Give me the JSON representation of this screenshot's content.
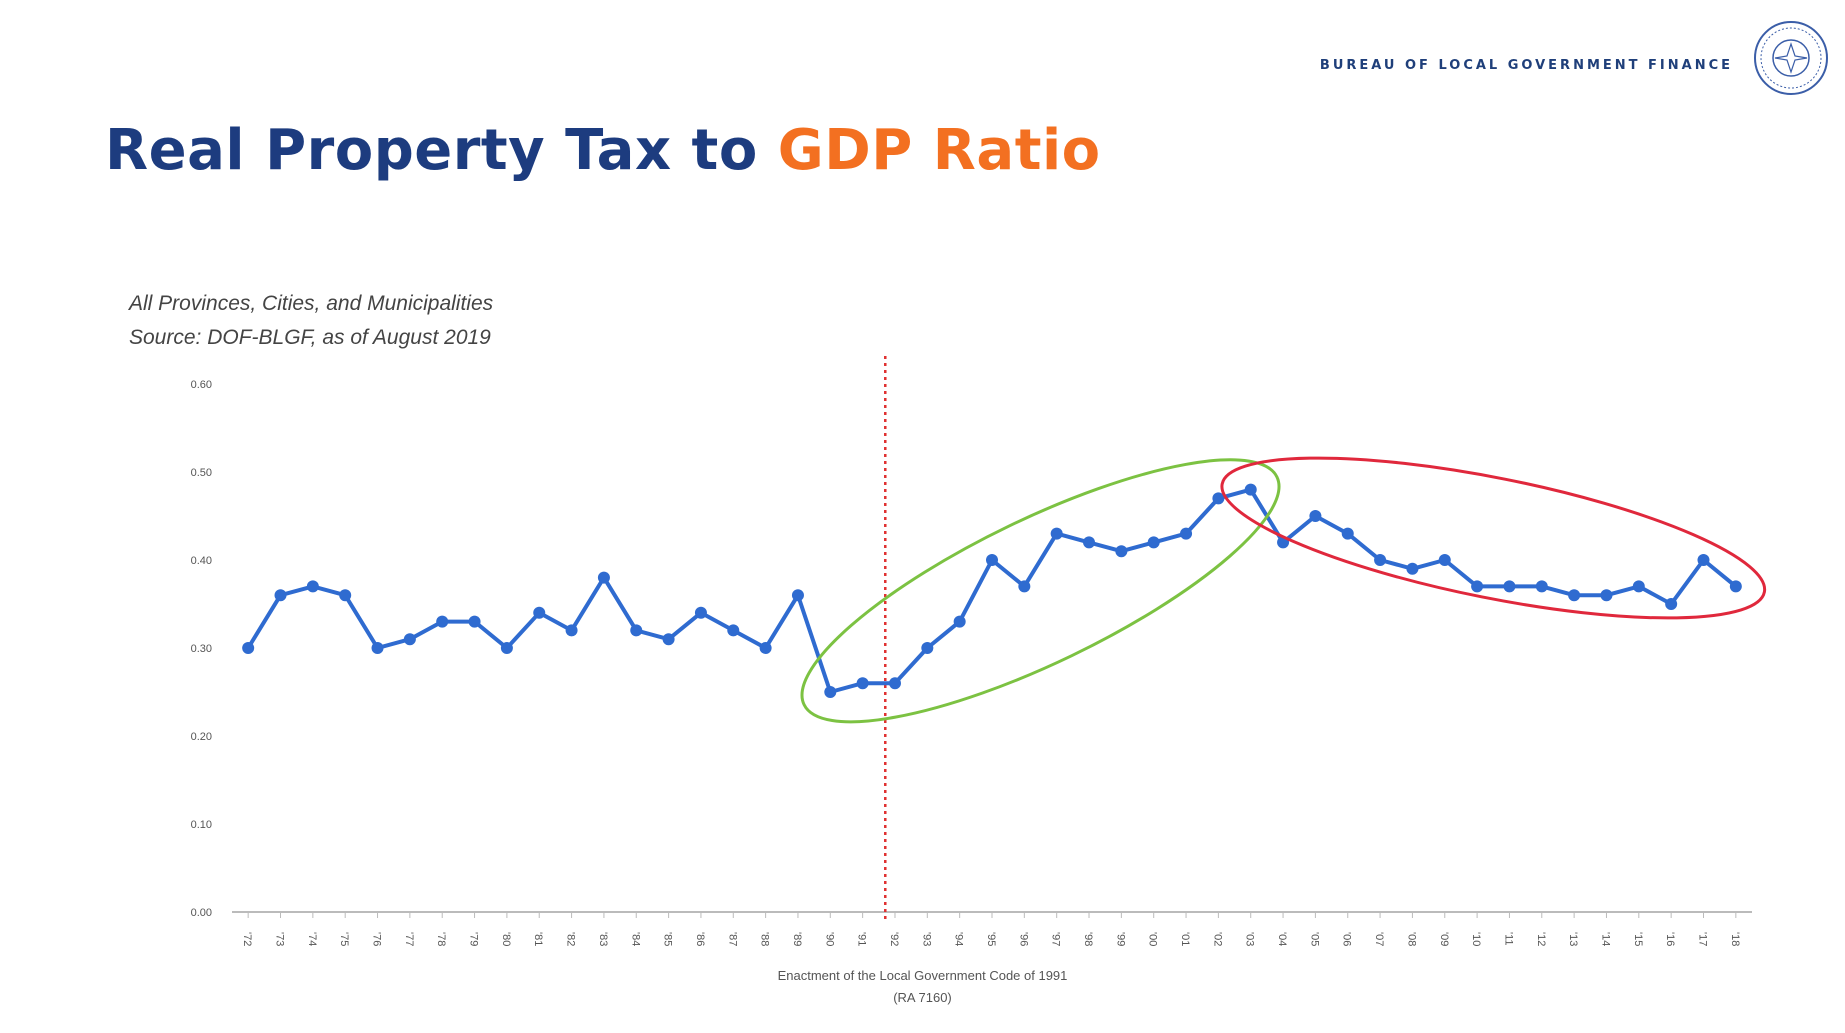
{
  "header": {
    "org_name": "Bureau of Local Government Finance",
    "title_part1": "Real Property Tax to ",
    "title_part2": "GDP Ratio",
    "title_color": "#1d3c7f",
    "accent_color": "#f37021"
  },
  "notes": {
    "line1": "All Provinces, Cities, and Municipalities",
    "line2": "Source: DOF-BLGF, as of August 2019"
  },
  "chart_data": {
    "type": "line",
    "x": [
      "'72",
      "'73",
      "'74",
      "'75",
      "'76",
      "'77",
      "'78",
      "'79",
      "'80",
      "'81",
      "'82",
      "'83",
      "'84",
      "'85",
      "'86",
      "'87",
      "'88",
      "'89",
      "'90",
      "'91",
      "'92",
      "'93",
      "'94",
      "'95",
      "'96",
      "'97",
      "'98",
      "'99",
      "'00",
      "'01",
      "'02",
      "'03",
      "'04",
      "'05",
      "'06",
      "'07",
      "'08",
      "'09",
      "'10",
      "'11",
      "'12",
      "'13",
      "'14",
      "'15",
      "'16",
      "'17",
      "'18"
    ],
    "series": [
      {
        "color": "#2f6bd0",
        "values": [
          0.3,
          0.36,
          0.37,
          0.36,
          0.3,
          0.31,
          0.33,
          0.33,
          0.3,
          0.34,
          0.32,
          0.38,
          0.32,
          0.31,
          0.34,
          0.32,
          0.3,
          0.36,
          0.25,
          0.26,
          0.26,
          0.3,
          0.33,
          0.4,
          0.37,
          0.43,
          0.42,
          0.41,
          0.42,
          0.43,
          0.47,
          0.48,
          0.42,
          0.45,
          0.43,
          0.4,
          0.39,
          0.4,
          0.37,
          0.37,
          0.37,
          0.36,
          0.36,
          0.37,
          0.35,
          0.4,
          0.37
        ]
      }
    ],
    "ylim": [
      0,
      0.6
    ],
    "yticks": [
      "0.00",
      "0.10",
      "0.20",
      "0.30",
      "0.40",
      "0.50",
      "0.60"
    ],
    "xlabel": "Enactment of the Local Government Code of 1991",
    "xlabel2": "(RA 7160)",
    "grid": false,
    "reference_line": {
      "at_category": "'92",
      "color": "#e03030",
      "style": "dotted"
    },
    "annotations": [
      {
        "shape": "ellipse",
        "color": "#7cc242",
        "from_category": "'90",
        "to_category": "'03",
        "description_visible": false
      },
      {
        "shape": "ellipse",
        "color": "#e0283c",
        "from_category": "'03",
        "to_category": "'18",
        "description_visible": false
      }
    ]
  }
}
